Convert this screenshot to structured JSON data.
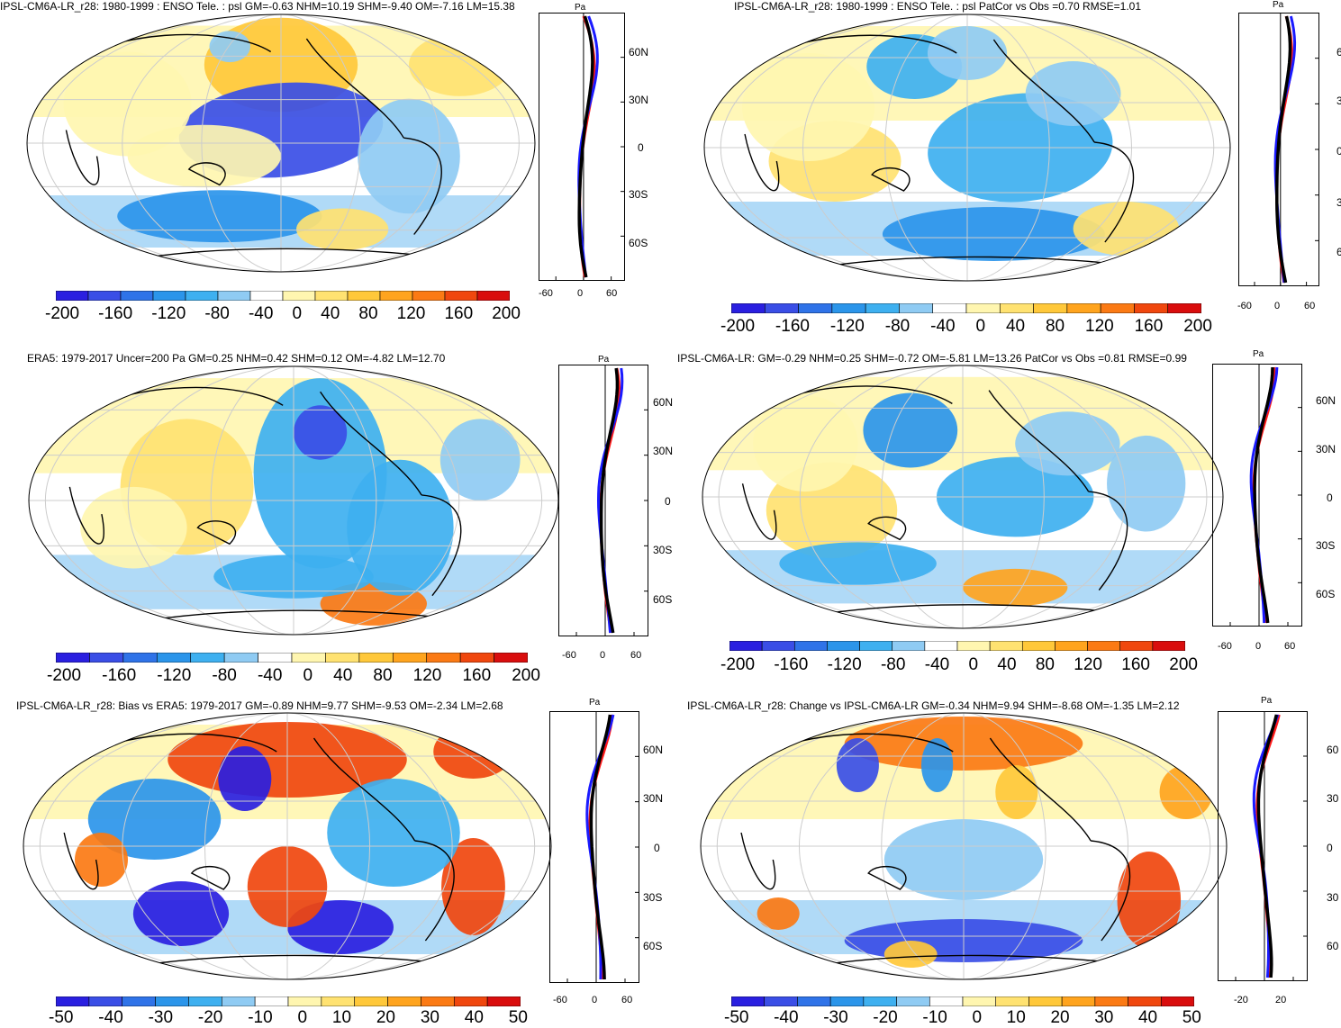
{
  "panels": [
    {
      "id": "p1",
      "title": "IPSL-CM6A-LR_r28: 1980-1999 : ENSO Tele. : psl GM=-0.63 NHM=10.19 SHM=-9.40 OM=-7.16 LM=15.38",
      "units": "Pa",
      "lat_labels": [
        "60N",
        "30N",
        "0",
        "30S",
        "60S"
      ],
      "x_ticks": [
        "-60",
        "0",
        "60"
      ],
      "colorbar_labels": [
        "-200",
        "-160",
        "-120",
        "-80",
        "-40",
        "0",
        "40",
        "80",
        "120",
        "160",
        "200"
      ]
    },
    {
      "id": "p2",
      "title": "IPSL-CM6A-LR_r28: 1980-1999 : ENSO Tele. : psl PatCor vs Obs =0.70 RMSE=1.01",
      "units": "Pa",
      "lat_labels": [
        "6",
        "3",
        "0",
        "3",
        "6"
      ],
      "x_ticks": [
        "-60",
        "0",
        "60"
      ],
      "colorbar_labels": [
        "-200",
        "-160",
        "-120",
        "-80",
        "-40",
        "0",
        "40",
        "80",
        "120",
        "160",
        "200"
      ]
    },
    {
      "id": "p3",
      "title": "ERA5: 1979-2017 Uncer=200 Pa GM=0.25 NHM=0.42 SHM=0.12 OM=-4.82 LM=12.70",
      "units": "Pa",
      "lat_labels": [
        "60N",
        "30N",
        "0",
        "30S",
        "60S"
      ],
      "x_ticks": [
        "-60",
        "0",
        "60"
      ],
      "colorbar_labels": [
        "-200",
        "-160",
        "-120",
        "-80",
        "-40",
        "0",
        "40",
        "80",
        "120",
        "160",
        "200"
      ]
    },
    {
      "id": "p4",
      "title": "IPSL-CM6A-LR: GM=-0.29 NHM=0.25 SHM=-0.72 OM=-5.81 LM=13.26 PatCor vs Obs =0.81 RMSE=0.99",
      "units": "Pa",
      "lat_labels": [
        "60N",
        "30N",
        "0",
        "30S",
        "60S"
      ],
      "x_ticks": [
        "-60",
        "0",
        "60"
      ],
      "colorbar_labels": [
        "-200",
        "-160",
        "-120",
        "-80",
        "-40",
        "0",
        "40",
        "80",
        "120",
        "160",
        "200"
      ]
    },
    {
      "id": "p5",
      "title": "IPSL-CM6A-LR_r28: Bias vs ERA5: 1979-2017 GM=-0.89 NHM=9.77 SHM=-9.53 OM=-2.34 LM=2.68",
      "units": "Pa",
      "lat_labels": [
        "60N",
        "30N",
        "0",
        "30S",
        "60S"
      ],
      "x_ticks": [
        "-60",
        "0",
        "60"
      ],
      "colorbar_labels": [
        "-50",
        "-40",
        "-30",
        "-20",
        "-10",
        "0",
        "10",
        "20",
        "30",
        "40",
        "50"
      ]
    },
    {
      "id": "p6",
      "title": "IPSL-CM6A-LR_r28: Change vs IPSL-CM6A-LR GM=-0.34 NHM=9.94 SHM=-8.68 OM=-1.35 LM=2.12",
      "units": "Pa",
      "lat_labels": [
        "60",
        "30",
        "0",
        "30",
        "60"
      ],
      "x_ticks": [
        "-20",
        "20"
      ],
      "colorbar_labels": [
        "-50",
        "-40",
        "-30",
        "-20",
        "-10",
        "0",
        "10",
        "20",
        "30",
        "40",
        "50"
      ]
    }
  ],
  "colors": {
    "scale": [
      "#2a1fe0",
      "#3a4ee6",
      "#2f73e8",
      "#2b95ea",
      "#3eb0f0",
      "#8fcbf3",
      "#ffffff",
      "#fff6b0",
      "#ffe271",
      "#ffc83a",
      "#ffa41e",
      "#fb7a14",
      "#f0470e",
      "#d90d0d"
    ],
    "model_line": "#ff1a1a",
    "obs_line": "#1a1aff",
    "mean_line": "#000000",
    "grid": "#cccccc",
    "coast": "#000000"
  }
}
